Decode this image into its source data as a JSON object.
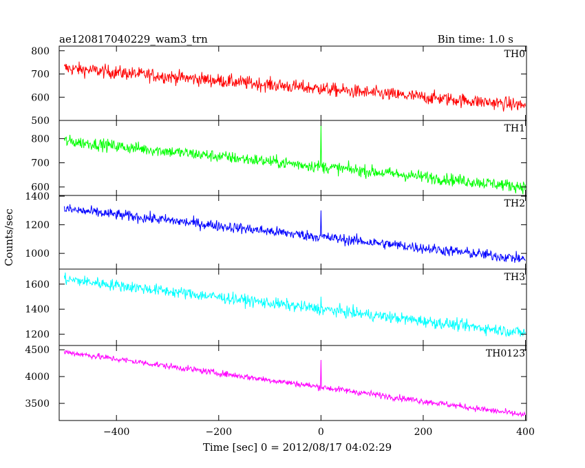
{
  "header": {
    "title": "ae120817040229_wam3_trn",
    "bin_time": "Bin time: 1.0 s"
  },
  "chart_data": {
    "type": "line",
    "title": "ae120817040229_wam3_trn",
    "xlabel": "Time [sec] 0 = 2012/08/17 04:02:29",
    "ylabel": "Counts/sec",
    "xlim": [
      -512,
      402
    ],
    "xticks": [
      -400,
      -200,
      0,
      200,
      400
    ],
    "grid": false,
    "panels": [
      {
        "name": "TH0",
        "color": "#ff0000",
        "ylim": [
          500,
          820
        ],
        "yticks": [
          500,
          600,
          700,
          800
        ],
        "trend_start": 725,
        "trend_end": 565,
        "noise": 35,
        "spike_x": 0,
        "spike_value": 655
      },
      {
        "name": "TH1",
        "color": "#00ff00",
        "ylim": [
          565,
          875
        ],
        "yticks": [
          600,
          700,
          800
        ],
        "trend_start": 790,
        "trend_end": 600,
        "noise": 30,
        "spike_x": 0,
        "spike_value": 855
      },
      {
        "name": "TH2",
        "color": "#0000ff",
        "ylim": [
          890,
          1405
        ],
        "yticks": [
          1000,
          1200,
          1400
        ],
        "trend_start": 1310,
        "trend_end": 960,
        "noise": 45,
        "spike_x": 0,
        "spike_value": 1300
      },
      {
        "name": "TH3",
        "color": "#00ffff",
        "ylim": [
          1110,
          1720
        ],
        "yticks": [
          1200,
          1400,
          1600
        ],
        "trend_start": 1640,
        "trend_end": 1210,
        "noise": 55,
        "spike_x": 0,
        "spike_value": 1500
      },
      {
        "name": "TH0123",
        "color": "#ff00ff",
        "ylim": [
          3180,
          4580
        ],
        "yticks": [
          3500,
          4000,
          4500
        ],
        "trend_start": 4460,
        "trend_end": 3280,
        "noise": 70,
        "spike_x": 0,
        "spike_value": 4310
      }
    ]
  }
}
